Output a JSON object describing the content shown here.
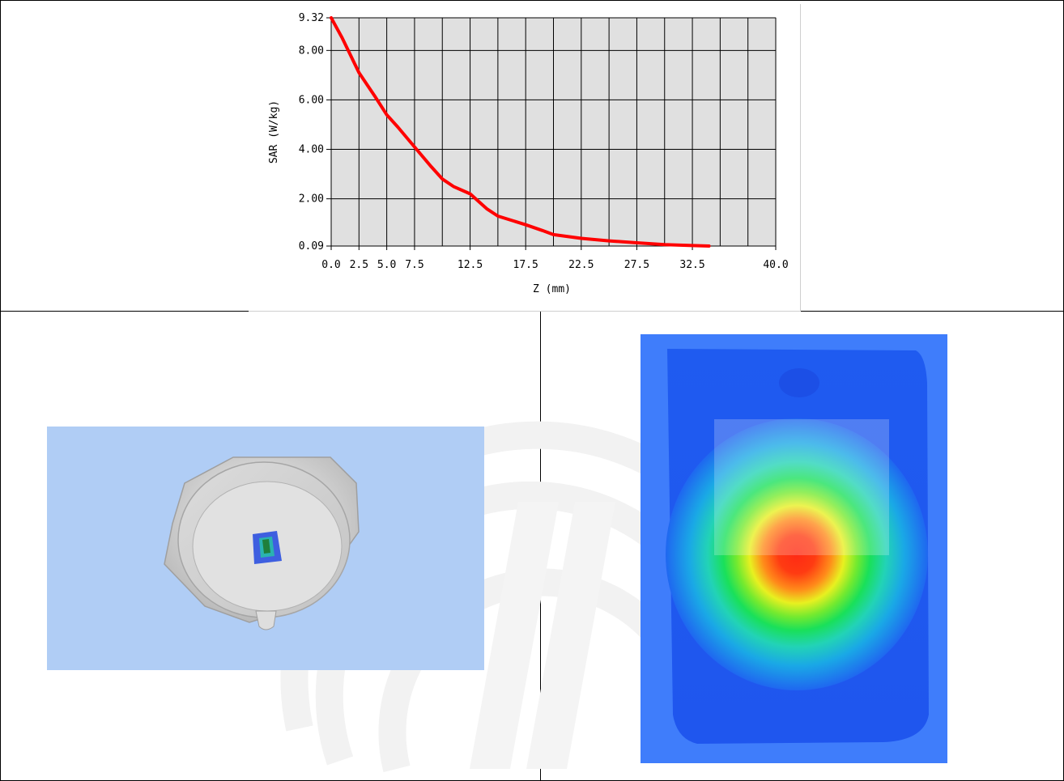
{
  "chart_data": {
    "type": "line",
    "xlabel": "Z (mm)",
    "ylabel": "SAR (W/kg)",
    "xlim": [
      0.0,
      40.0
    ],
    "ylim": [
      0.09,
      9.32
    ],
    "x_ticks": [
      0.0,
      2.5,
      5.0,
      7.5,
      12.5,
      17.5,
      22.5,
      27.5,
      32.5,
      40.0
    ],
    "x_tick_labels": [
      "0.0",
      "2.5",
      "5.0",
      "7.5",
      "12.5",
      "17.5",
      "22.5",
      "27.5",
      "32.5",
      "40.0"
    ],
    "y_ticks": [
      0.09,
      2.0,
      4.0,
      6.0,
      8.0,
      9.32
    ],
    "y_tick_labels": [
      "0.09",
      "2.00",
      "4.00",
      "6.00",
      "8.00",
      "9.32"
    ],
    "grid": true,
    "series": [
      {
        "color": "#ff0000",
        "x": [
          0,
          1,
          2.5,
          4,
          5,
          6,
          7.5,
          9,
          10,
          11,
          12.5,
          14,
          15,
          17.5,
          19,
          20,
          22.5,
          25,
          27.5,
          30,
          32.5,
          34
        ],
        "y": [
          9.32,
          8.5,
          7.1,
          6.1,
          5.4,
          4.9,
          4.1,
          3.3,
          2.8,
          2.5,
          2.2,
          1.6,
          1.3,
          0.95,
          0.72,
          0.55,
          0.4,
          0.3,
          0.22,
          0.15,
          0.11,
          0.09
        ]
      }
    ]
  },
  "colors": {
    "plot_background": "#e0e0e0",
    "gridline": "#000000",
    "series": "#ff0000",
    "phantom_background": "#b0cdf5",
    "heatmap_background": "#3f7dfb"
  }
}
